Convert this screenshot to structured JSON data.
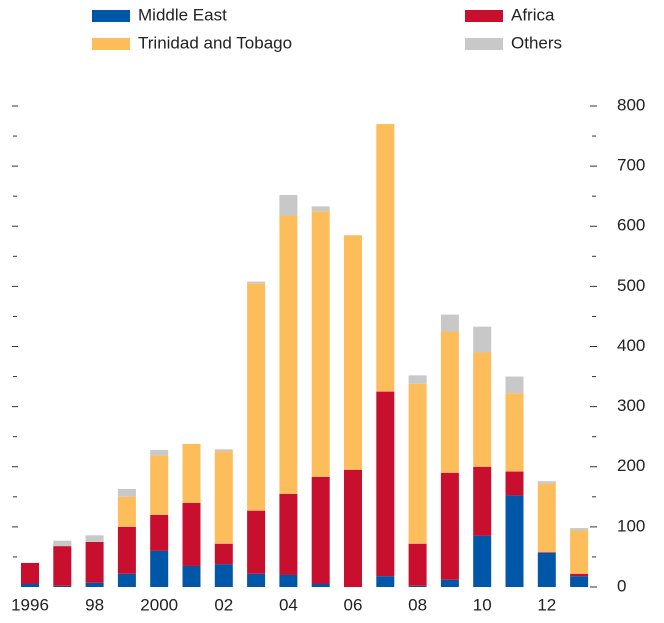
{
  "chart_data": {
    "type": "stacked_bar",
    "categories": [
      "1996",
      null,
      "98",
      null,
      "2000",
      null,
      "02",
      null,
      "04",
      null,
      "06",
      null,
      "08",
      null,
      "10",
      null,
      "12",
      null
    ],
    "series": [
      {
        "name": "Middle East",
        "color": "#0057a8",
        "values": [
          5,
          2,
          7,
          22,
          60,
          35,
          38,
          22,
          20,
          5,
          0,
          18,
          2,
          12,
          85,
          152,
          57,
          18
        ]
      },
      {
        "name": "Africa",
        "color": "#c8102e",
        "values": [
          35,
          66,
          68,
          78,
          60,
          105,
          34,
          105,
          135,
          178,
          195,
          307,
          70,
          178,
          115,
          40,
          1,
          4
        ]
      },
      {
        "name": "Trinidad and Tobago",
        "color": "#fdbd5a",
        "values": [
          0,
          0,
          0,
          50,
          98,
          98,
          154,
          378,
          462,
          442,
          390,
          445,
          266,
          235,
          190,
          130,
          114,
          72
        ]
      },
      {
        "name": "Others",
        "color": "#c8c8c8",
        "values": [
          0,
          9,
          11,
          13,
          10,
          0,
          3,
          3,
          35,
          8,
          0,
          0,
          14,
          28,
          43,
          28,
          4,
          4
        ]
      }
    ],
    "ylim": [
      0,
      800
    ],
    "yticks": [
      0,
      100,
      200,
      300,
      400,
      500,
      600,
      700,
      800
    ],
    "yticks_minor": [
      50,
      150,
      250,
      350,
      450,
      550,
      650,
      750
    ]
  }
}
